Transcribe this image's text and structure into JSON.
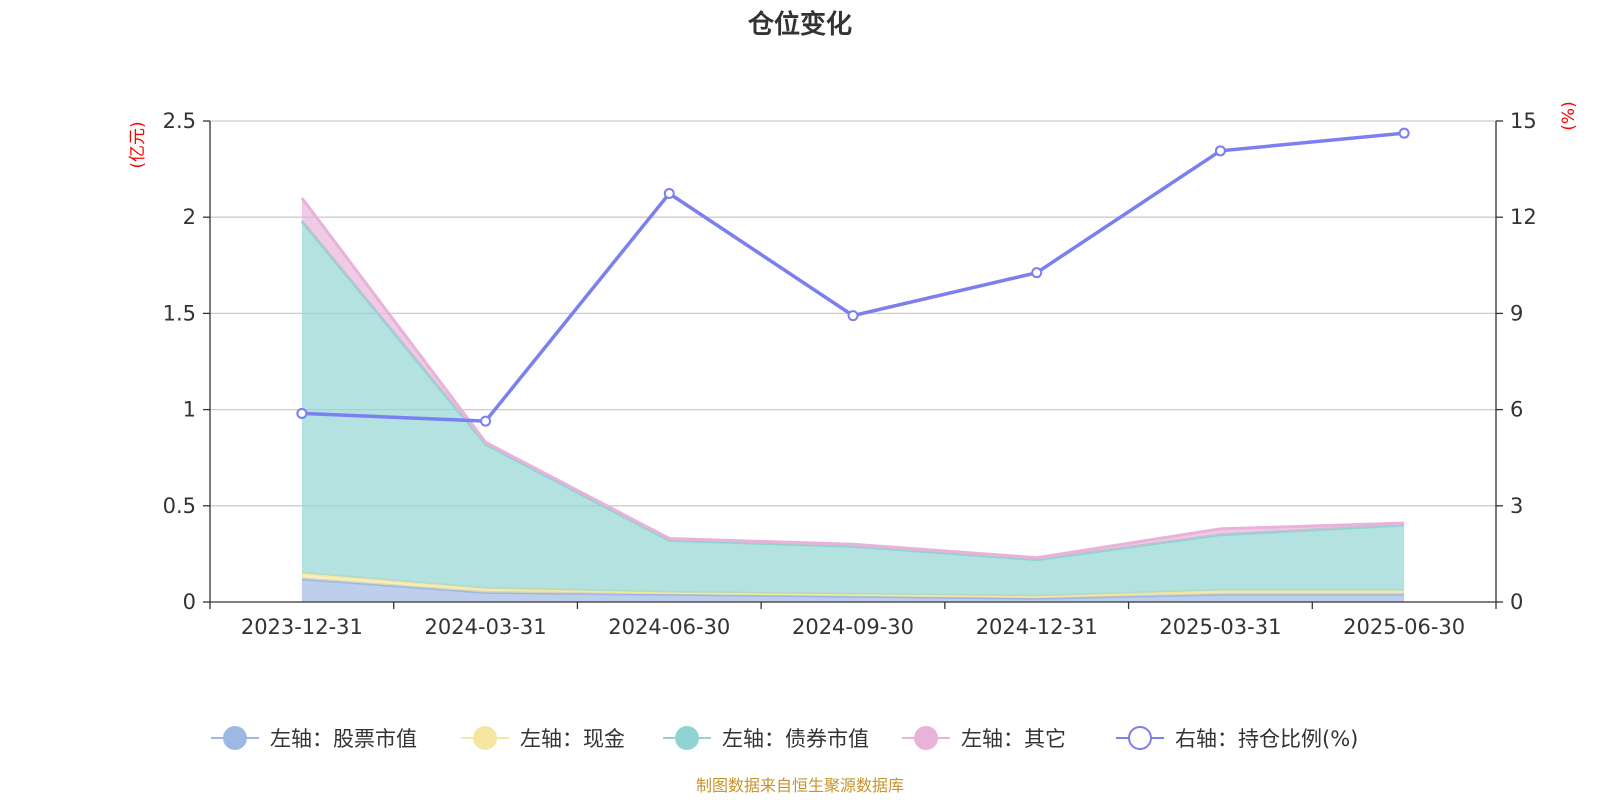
{
  "chart_data": {
    "type": "area",
    "title": "仓位变化",
    "left_unit": "(亿元)",
    "right_unit": "(%)",
    "categories": [
      "2023-12-31",
      "2024-03-31",
      "2024-06-30",
      "2024-09-30",
      "2024-12-31",
      "2025-03-31",
      "2025-06-30"
    ],
    "left_axis": {
      "min": 0,
      "max": 2.5,
      "ticks": [
        "0",
        "0.5",
        "1",
        "1.5",
        "2",
        "2.5"
      ]
    },
    "right_axis": {
      "min": 0,
      "max": 15,
      "ticks": [
        "0",
        "3",
        "6",
        "9",
        "12",
        "15"
      ]
    },
    "stacked_series": [
      {
        "name": "左轴：股票市值",
        "axis": "left",
        "color": "#9db8e3",
        "values": [
          0.12,
          0.05,
          0.04,
          0.03,
          0.02,
          0.04,
          0.04
        ]
      },
      {
        "name": "左轴：现金",
        "axis": "left",
        "color": "#f5e6a1",
        "values": [
          0.03,
          0.02,
          0.01,
          0.01,
          0.01,
          0.02,
          0.02
        ]
      },
      {
        "name": "左轴：债券市值",
        "axis": "left",
        "color": "#8fd4d2",
        "values": [
          1.83,
          0.75,
          0.27,
          0.25,
          0.19,
          0.29,
          0.34
        ]
      },
      {
        "name": "左轴：其它",
        "axis": "left",
        "color": "#e8b2d9",
        "values": [
          0.12,
          0.01,
          0.01,
          0.01,
          0.01,
          0.03,
          0.01
        ]
      }
    ],
    "line_series": {
      "name": "右轴：持仓比例(%)",
      "axis": "right",
      "color": "#7b7ff0",
      "values": [
        5.88,
        5.64,
        12.74,
        8.93,
        10.27,
        14.07,
        14.62
      ]
    },
    "grid": true,
    "legend_position": "bottom"
  },
  "footer": {
    "source": "制图数据来自恒生聚源数据库"
  }
}
